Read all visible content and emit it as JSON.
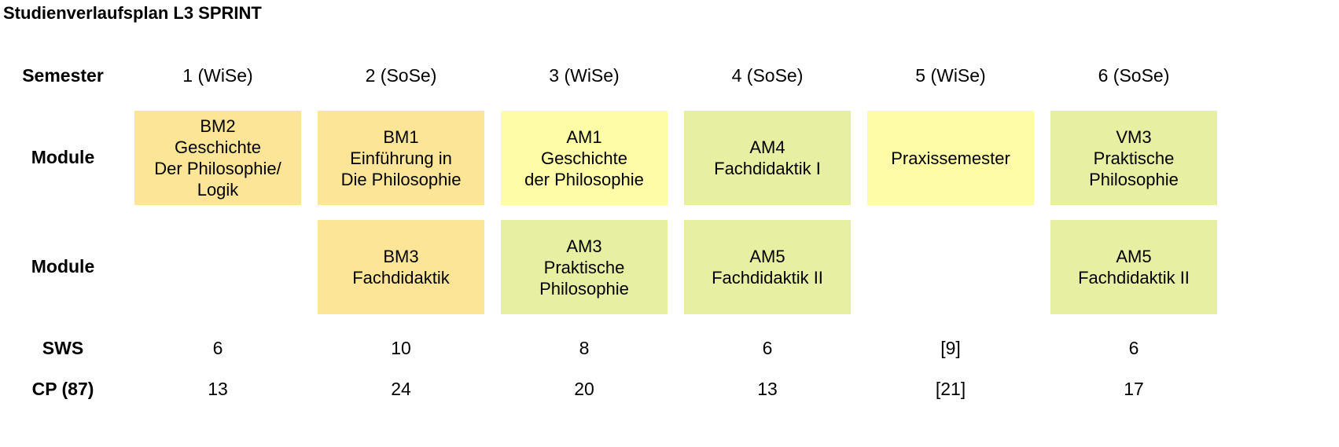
{
  "title": "Studienverlaufsplan L3 SPRINT",
  "row_labels": {
    "semester": "Semester",
    "module_1": "Module",
    "module_2": "Module",
    "sws": "SWS",
    "cp": "CP (87)"
  },
  "colors": {
    "orange": "#fde597",
    "yellow": "#fefca6",
    "green": "#e7f0a2"
  },
  "semesters": [
    {
      "label": "1 (WiSe)",
      "module_1": {
        "color": "orange",
        "lines": [
          "BM2",
          "Geschichte",
          "Der Philosophie/",
          "Logik"
        ]
      },
      "module_2": null,
      "sws": "6",
      "cp": "13"
    },
    {
      "label": "2 (SoSe)",
      "module_1": {
        "color": "orange",
        "lines": [
          "BM1",
          "Einführung in",
          "Die Philosophie"
        ]
      },
      "module_2": {
        "color": "orange",
        "lines": [
          "BM3",
          "Fachdidaktik"
        ]
      },
      "sws": "10",
      "cp": "24"
    },
    {
      "label": "3 (WiSe)",
      "module_1": {
        "color": "yellow",
        "lines": [
          "AM1",
          "Geschichte",
          "der Philosophie"
        ]
      },
      "module_2": {
        "color": "green",
        "lines": [
          "AM3",
          "Praktische",
          "Philosophie"
        ]
      },
      "sws": "8",
      "cp": "20"
    },
    {
      "label": "4 (SoSe)",
      "module_1": {
        "color": "green",
        "lines": [
          "AM4",
          "Fachdidaktik I"
        ]
      },
      "module_2": {
        "color": "green",
        "lines": [
          "AM5",
          "Fachdidaktik II"
        ]
      },
      "sws": "6",
      "cp": "13"
    },
    {
      "label": "5 (WiSe)",
      "module_1": {
        "color": "yellow",
        "lines": [
          "Praxissemester"
        ]
      },
      "module_2": null,
      "sws": "[9]",
      "cp": "[21]"
    },
    {
      "label": "6 (SoSe)",
      "module_1": {
        "color": "green",
        "lines": [
          "VM3",
          "Praktische",
          "Philosophie"
        ]
      },
      "module_2": {
        "color": "green",
        "lines": [
          "AM5",
          "Fachdidaktik II"
        ]
      },
      "sws": "6",
      "cp": "17"
    }
  ]
}
